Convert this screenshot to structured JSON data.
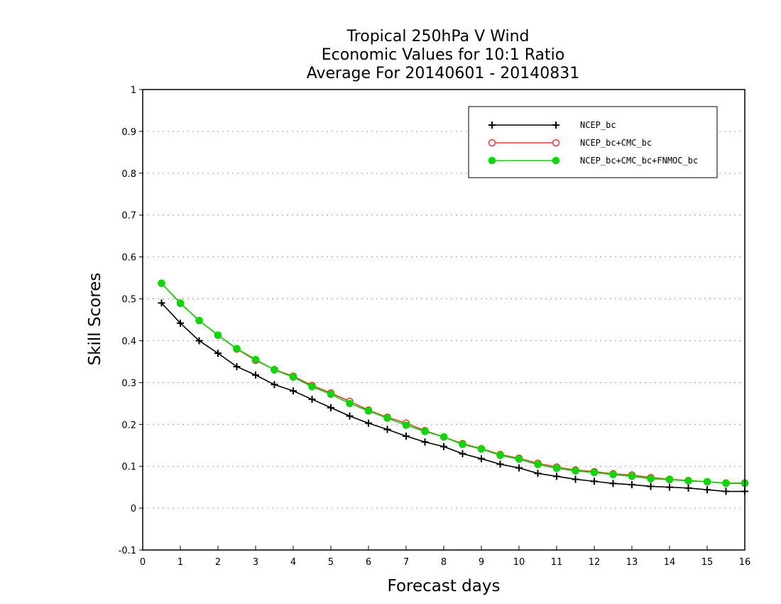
{
  "chart_data": {
    "type": "line",
    "title": [
      "Tropical 250hPa V Wind",
      "Economic Values for 10:1 Ratio",
      "Average For 20140601 - 20140831"
    ],
    "xlabel": "Forecast days",
    "ylabel": "Skill Scores",
    "xlim": [
      0,
      16
    ],
    "ylim": [
      -0.1,
      1
    ],
    "xticks": [
      0,
      1,
      2,
      3,
      4,
      5,
      6,
      7,
      8,
      9,
      10,
      11,
      12,
      13,
      14,
      15,
      16
    ],
    "yticks": [
      -0.1,
      0,
      0.1,
      0.2,
      0.3,
      0.4,
      0.5,
      0.6,
      0.7,
      0.8,
      0.9,
      1
    ],
    "ytick_labels": [
      "-0.1",
      "0",
      "0.1",
      "0.2",
      "0.3",
      "0.4",
      "0.5",
      "0.6",
      "0.7",
      "0.8",
      "0.9",
      "1"
    ],
    "grid": "horizontal dotted",
    "legend_position": "top-right",
    "x": [
      0.5,
      1,
      1.5,
      2,
      2.5,
      3,
      3.5,
      4,
      4.5,
      5,
      5.5,
      6,
      6.5,
      7,
      7.5,
      8,
      8.5,
      9,
      9.5,
      10,
      10.5,
      11,
      11.5,
      12,
      12.5,
      13,
      13.5,
      14,
      14.5,
      15,
      15.5,
      16
    ],
    "series": [
      {
        "name": "NCEP_bc",
        "color": "#000000",
        "marker": "plus",
        "values": [
          0.49,
          0.442,
          0.4,
          0.37,
          0.338,
          0.318,
          0.295,
          0.28,
          0.26,
          0.24,
          0.22,
          0.203,
          0.188,
          0.172,
          0.158,
          0.147,
          0.13,
          0.118,
          0.105,
          0.096,
          0.083,
          0.076,
          0.069,
          0.064,
          0.059,
          0.056,
          0.052,
          0.05,
          0.048,
          0.044,
          0.04,
          0.04
        ]
      },
      {
        "name": "NCEP_bc+CMC_bc",
        "color": "#ff3030",
        "marker": "open-circle",
        "values": [
          0.537,
          0.49,
          0.448,
          0.413,
          0.38,
          0.353,
          0.331,
          0.315,
          0.293,
          0.275,
          0.255,
          0.234,
          0.217,
          0.203,
          0.185,
          0.17,
          0.154,
          0.142,
          0.128,
          0.119,
          0.107,
          0.098,
          0.091,
          0.087,
          0.082,
          0.079,
          0.073,
          0.069,
          0.066,
          0.063,
          0.06,
          0.06
        ]
      },
      {
        "name": "NCEP_bc+CMC_bc+FNMOC_bc",
        "color": "#00dc00",
        "marker": "filled-circle",
        "values": [
          0.537,
          0.489,
          0.448,
          0.413,
          0.381,
          0.355,
          0.33,
          0.313,
          0.29,
          0.272,
          0.25,
          0.232,
          0.215,
          0.198,
          0.183,
          0.17,
          0.152,
          0.141,
          0.126,
          0.117,
          0.104,
          0.095,
          0.089,
          0.085,
          0.08,
          0.076,
          0.07,
          0.068,
          0.065,
          0.063,
          0.059,
          0.059
        ]
      }
    ]
  }
}
